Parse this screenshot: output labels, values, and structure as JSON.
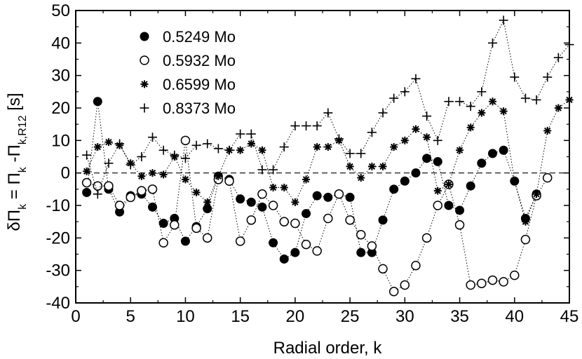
{
  "chart_data": {
    "type": "scatter",
    "xlabel": "Radial order, k",
    "ylabel": {
      "parts": [
        {
          "text": "δΠ",
          "sub": false
        },
        {
          "text": "k",
          "sub": true
        },
        {
          "text": " = Π",
          "sub": false
        },
        {
          "text": "k",
          "sub": true
        },
        {
          "text": " -Π",
          "sub": false
        },
        {
          "text": "k,R12",
          "sub": true
        },
        {
          "text": " [s]",
          "sub": false
        }
      ]
    },
    "xlim": [
      0,
      45
    ],
    "ylim": [
      -40,
      50
    ],
    "xticks": [
      0,
      5,
      10,
      15,
      20,
      25,
      30,
      35,
      40,
      45
    ],
    "yticks": [
      -40,
      -30,
      -20,
      -10,
      0,
      10,
      20,
      30,
      40,
      50
    ],
    "reference_line": 0,
    "legend_position": "top-left",
    "grid": false,
    "series": [
      {
        "name": "0.5249 Mo",
        "marker": "filled-circle",
        "x": [
          1,
          2,
          3,
          4,
          5,
          6,
          7,
          8,
          9,
          10,
          11,
          12,
          13,
          14,
          15,
          16,
          17,
          18,
          19,
          20,
          21,
          22,
          23,
          24,
          25,
          26,
          27,
          28,
          29,
          30,
          31,
          32,
          33,
          34,
          35,
          36,
          37,
          38,
          39,
          40,
          41,
          42
        ],
        "y": [
          -6,
          22,
          -5,
          -12,
          -7,
          -6.5,
          -10.5,
          -15.5,
          -14,
          -21,
          -16.5,
          -11,
          -1,
          -2,
          -8,
          -9,
          -10.5,
          -21.5,
          -26.5,
          -24.5,
          -12.5,
          -7,
          -7.5,
          -6.5,
          -7.5,
          -24.5,
          -24.5,
          -14.5,
          -5,
          -2.5,
          0,
          4.5,
          3.5,
          -10,
          -11.5,
          -4,
          3,
          6,
          7,
          -2.5,
          -14,
          -6.5
        ]
      },
      {
        "name": "0.5932 Mo",
        "marker": "open-circle",
        "x": [
          1,
          2,
          3,
          4,
          5,
          6,
          7,
          8,
          9,
          10,
          11,
          12,
          13,
          14,
          15,
          16,
          17,
          18,
          19,
          20,
          21,
          22,
          23,
          24,
          25,
          26,
          27,
          28,
          29,
          30,
          31,
          32,
          33,
          34,
          35,
          36,
          37,
          38,
          39,
          40,
          41,
          42,
          43
        ],
        "y": [
          -3,
          -4,
          -4,
          -10,
          -7.5,
          -5.5,
          -5,
          -21.5,
          -16,
          10,
          -17,
          -20,
          -2,
          -2.5,
          -21,
          -14.5,
          -6.5,
          -10,
          -15,
          -15.5,
          -22,
          -24,
          -14,
          -6.5,
          -14.5,
          -19,
          -22.5,
          -29.5,
          -36.5,
          -34.5,
          -28.5,
          -20,
          -10,
          -3.5,
          -16,
          -34.5,
          -34,
          -33,
          -33.5,
          -31.5,
          -20.5,
          -7,
          -1.5
        ]
      },
      {
        "name": "0.6599 Mo",
        "marker": "asterisk",
        "x": [
          1,
          2,
          3,
          4,
          5,
          6,
          7,
          8,
          9,
          10,
          11,
          12,
          13,
          14,
          15,
          16,
          17,
          18,
          19,
          20,
          21,
          22,
          23,
          24,
          25,
          26,
          27,
          28,
          29,
          30,
          31,
          32,
          33,
          34,
          35,
          36,
          37,
          38,
          39,
          40,
          41,
          42,
          43,
          44,
          45
        ],
        "y": [
          0.5,
          8,
          9.5,
          8.5,
          3,
          -1,
          0,
          -0.5,
          5,
          -2,
          -6,
          -9,
          -1,
          7,
          7,
          9,
          7,
          -4.5,
          -4.5,
          -9,
          -2,
          8,
          8,
          10,
          2,
          -1.5,
          2,
          2,
          8,
          10,
          13.5,
          11,
          -5.5,
          -3.5,
          7,
          14,
          18.5,
          22,
          19,
          -2.5,
          -15,
          -6.5,
          13,
          20,
          22.5
        ]
      },
      {
        "name": "0.8373 Mo",
        "marker": "plus",
        "x": [
          1,
          2,
          3,
          4,
          5,
          6,
          7,
          8,
          9,
          10,
          11,
          12,
          13,
          14,
          15,
          16,
          17,
          18,
          19,
          20,
          21,
          22,
          23,
          24,
          25,
          26,
          27,
          28,
          29,
          30,
          31,
          32,
          33,
          34,
          35,
          36,
          37,
          38,
          39,
          40,
          41,
          42,
          43,
          44,
          45
        ],
        "y": [
          5.5,
          -6.5,
          3,
          9,
          2.5,
          5,
          11,
          7,
          5.5,
          4.5,
          8.5,
          9,
          7.5,
          7,
          12,
          12,
          1,
          1,
          8,
          14.5,
          14.5,
          14.5,
          18.5,
          10.5,
          6,
          6,
          12.5,
          18.5,
          23,
          25,
          29,
          17.5,
          10,
          22,
          22,
          20.5,
          25,
          40,
          47,
          29.5,
          23,
          22.5,
          29.5,
          35.5,
          39.5
        ]
      }
    ]
  }
}
